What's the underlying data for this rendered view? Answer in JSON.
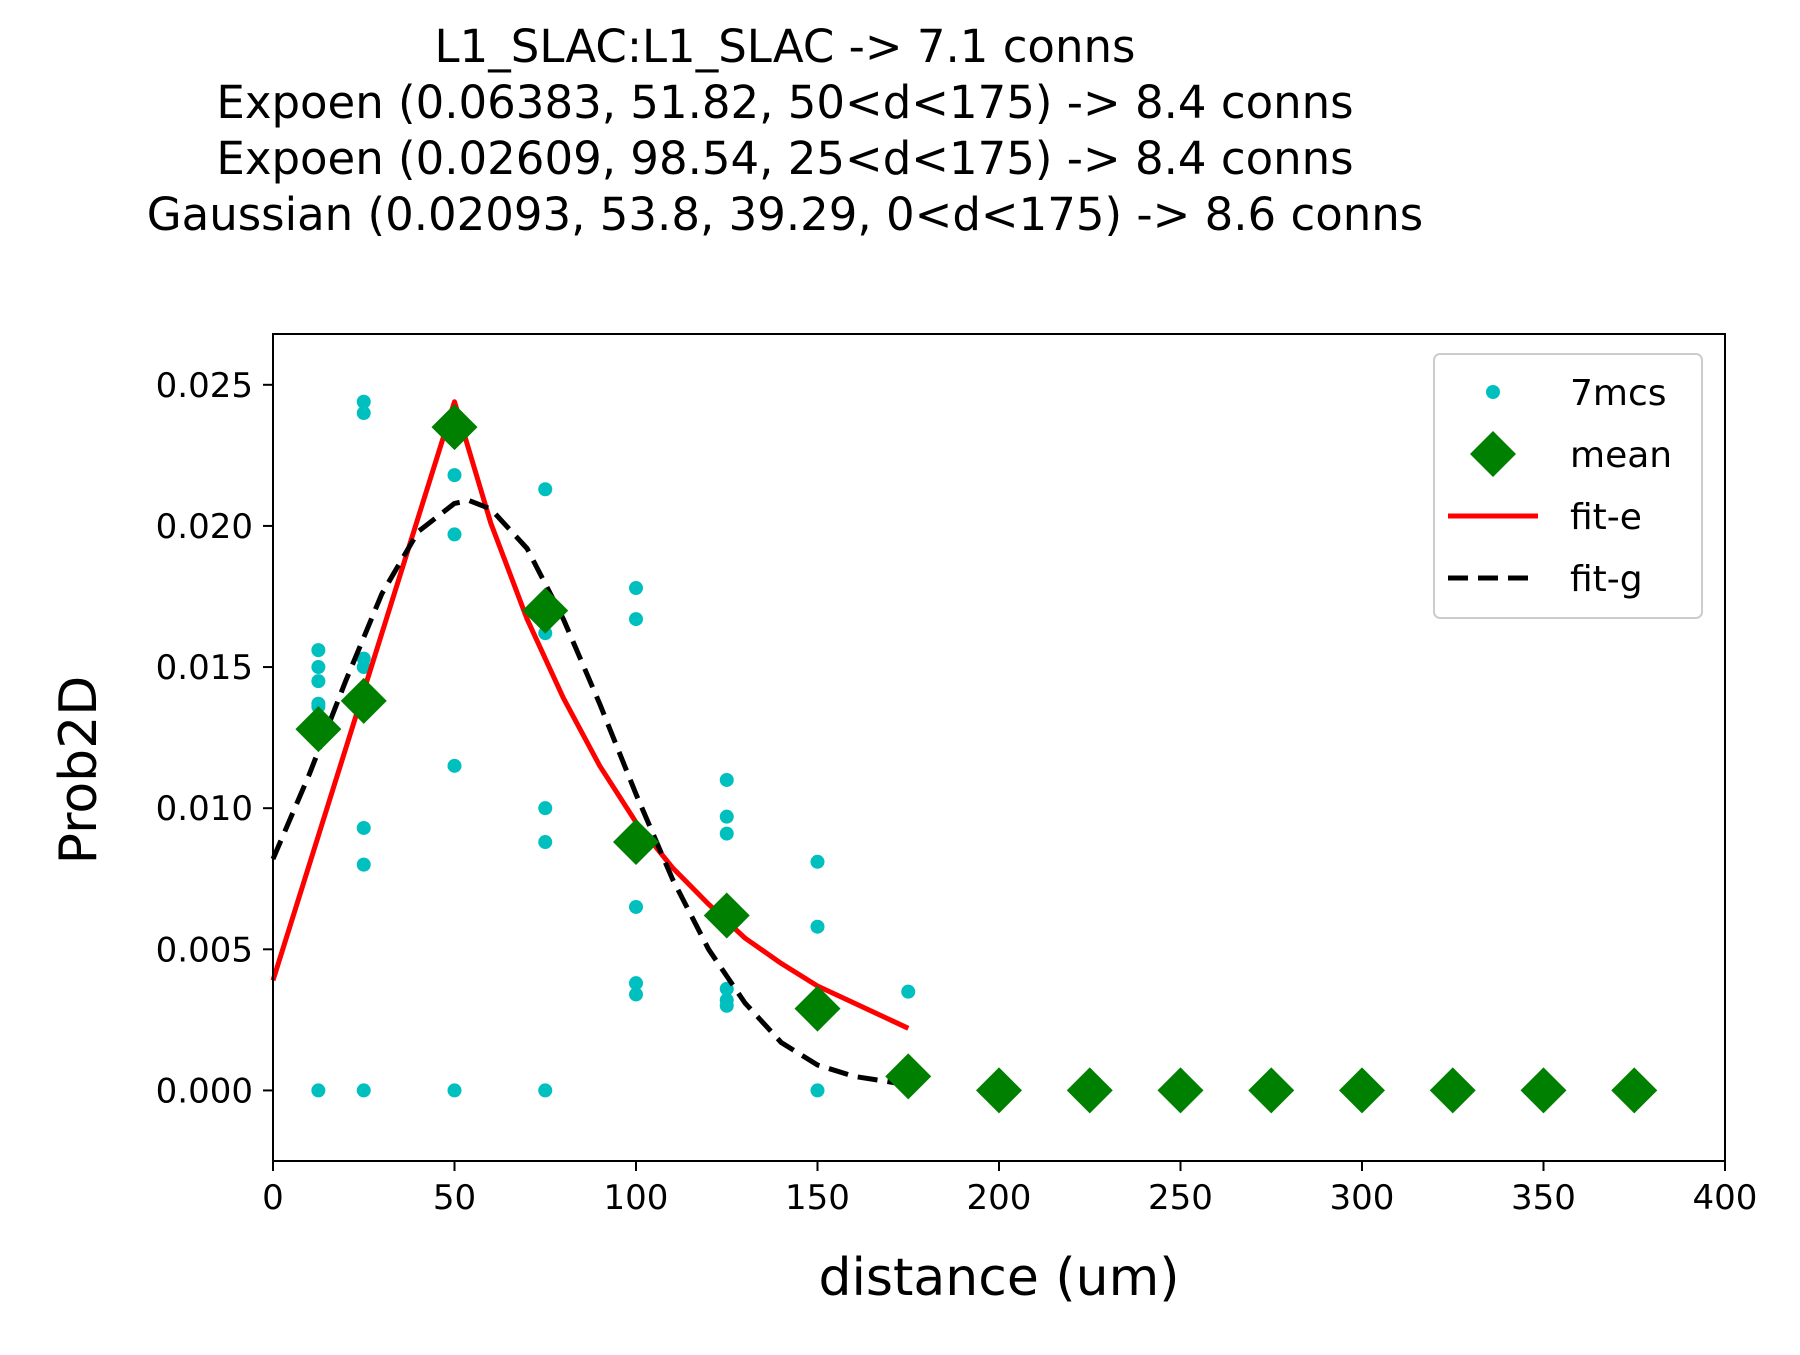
{
  "chart_data": {
    "type": "scatter",
    "title_lines": [
      "L1_SLAC:L1_SLAC -> 7.1 conns",
      "Expoen (0.06383, 51.82, 50<d<175) -> 8.4 conns",
      "Expoen (0.02609, 98.54, 25<d<175) -> 8.4 conns",
      "Gaussian (0.02093, 53.8, 39.29, 0<d<175) -> 8.6 conns"
    ],
    "xlabel": "distance (um)",
    "ylabel": "Prob2D",
    "xlim": [
      0,
      400
    ],
    "ylim": [
      -0.0025,
      0.0268
    ],
    "xticks": [
      0,
      50,
      100,
      150,
      200,
      250,
      300,
      350,
      400
    ],
    "xtick_labels": [
      "0",
      "50",
      "100",
      "150",
      "200",
      "250",
      "300",
      "350",
      "400"
    ],
    "yticks": [
      0.0,
      0.005,
      0.01,
      0.015,
      0.02,
      0.025
    ],
    "ytick_labels": [
      "0.000",
      "0.005",
      "0.010",
      "0.015",
      "0.020",
      "0.025"
    ],
    "grid": false,
    "legend_position": "top-right",
    "series": [
      {
        "name": "7mcs",
        "kind": "points",
        "color": "#00bfbf",
        "x": [
          12.5,
          12.5,
          12.5,
          12.5,
          12.5,
          12.5,
          25,
          25,
          25,
          25,
          25,
          25,
          25,
          50,
          50,
          50,
          50,
          75,
          75,
          75,
          75,
          75,
          100,
          100,
          100,
          100,
          100,
          125,
          125,
          125,
          125,
          125,
          125,
          150,
          150,
          150,
          175
        ],
        "y": [
          0.0156,
          0.015,
          0.0145,
          0.0137,
          0.0136,
          0.0,
          0.0244,
          0.024,
          0.0153,
          0.015,
          0.0093,
          0.008,
          0.0,
          0.0218,
          0.0197,
          0.0115,
          0.0,
          0.0213,
          0.0162,
          0.01,
          0.0088,
          0.0,
          0.0178,
          0.0167,
          0.0065,
          0.0038,
          0.0034,
          0.011,
          0.0097,
          0.0091,
          0.0036,
          0.0032,
          0.003,
          0.0081,
          0.0058,
          0.0,
          0.0035
        ]
      },
      {
        "name": "mean",
        "kind": "diamonds",
        "color": "#008000",
        "x": [
          12.5,
          25,
          50,
          75,
          100,
          125,
          150,
          175,
          200,
          225,
          250,
          275,
          300,
          325,
          350,
          375
        ],
        "y": [
          0.0128,
          0.0138,
          0.0235,
          0.017,
          0.0088,
          0.0062,
          0.0029,
          0.0005,
          0.0,
          0.0,
          0.0,
          0.0,
          0.0,
          0.0,
          0.0,
          0.0
        ]
      },
      {
        "name": "fit-e",
        "kind": "line",
        "color": "#ff0000",
        "x": [
          0,
          50,
          60,
          70,
          80,
          90,
          100,
          110,
          120,
          130,
          140,
          150,
          160,
          175
        ],
        "y": [
          0.0039,
          0.0244,
          0.0201,
          0.0167,
          0.0139,
          0.0115,
          0.0095,
          0.0079,
          0.0066,
          0.0054,
          0.0045,
          0.0037,
          0.0031,
          0.0022
        ]
      },
      {
        "name": "fit-g",
        "kind": "dashed-line",
        "color": "#000000",
        "x": [
          0,
          10,
          20,
          30,
          40,
          50,
          54,
          60,
          70,
          80,
          90,
          100,
          110,
          120,
          130,
          140,
          150,
          160,
          175
        ],
        "y": [
          0.0082,
          0.0112,
          0.0145,
          0.0176,
          0.0198,
          0.0208,
          0.0209,
          0.0206,
          0.0192,
          0.0167,
          0.0137,
          0.0105,
          0.0075,
          0.005,
          0.0031,
          0.0017,
          0.0009,
          0.0005,
          0.0002
        ]
      }
    ]
  }
}
